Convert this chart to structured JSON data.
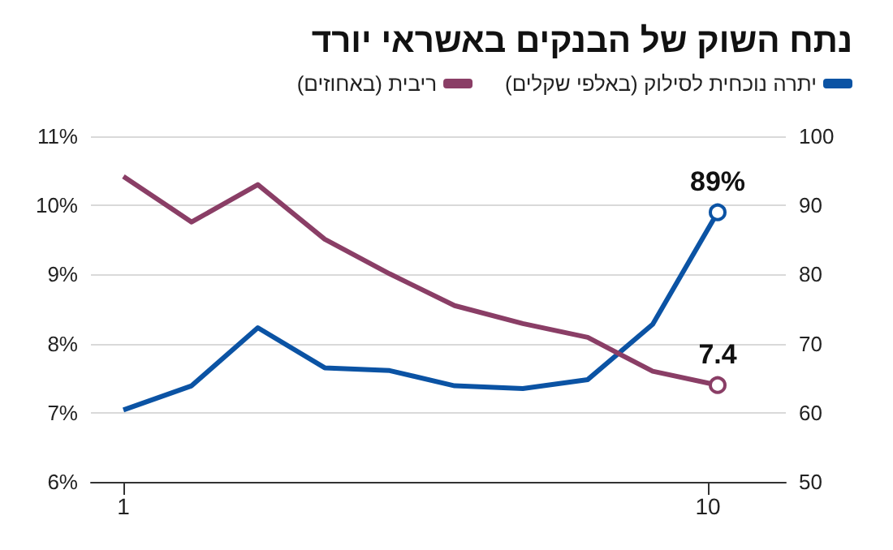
{
  "chart_data": {
    "type": "line",
    "title": "נתח השוק של הבנקים באשראי יורד",
    "x": [
      1,
      2.05,
      3.07,
      4.1,
      5.1,
      6.1,
      7.15,
      8.15,
      9.15,
      10.15
    ],
    "series": [
      {
        "name": "יתרה נוכחית לסילוק (באלפי שקלים)",
        "color": "#0b53a4",
        "axis": "y2",
        "values": [
          60.4,
          63.9,
          72.3,
          66.5,
          66.1,
          63.9,
          63.5,
          64.8,
          72.8,
          89
        ],
        "value_labels": [
          null,
          null,
          null,
          null,
          null,
          null,
          null,
          null,
          null,
          "89%"
        ]
      },
      {
        "name": "ריבית (באחוזים)",
        "color": "#8a3e66",
        "values": [
          10.42,
          9.76,
          10.3,
          9.51,
          9.01,
          8.55,
          8.29,
          8.09,
          7.6,
          7.4
        ],
        "value_labels": [
          null,
          null,
          null,
          null,
          null,
          null,
          null,
          null,
          null,
          "7.4"
        ]
      }
    ],
    "xlim": [
      0.5,
      11.2
    ],
    "xticks": [
      1,
      10
    ],
    "ylim": [
      6,
      11
    ],
    "yticks": [
      {
        "value": 6,
        "label": "6%"
      },
      {
        "value": 7,
        "label": "7%"
      },
      {
        "value": 8,
        "label": "8%"
      },
      {
        "value": 9,
        "label": "9%"
      },
      {
        "value": 10,
        "label": "10%"
      },
      {
        "value": 11,
        "label": "11%"
      }
    ],
    "y2lim": [
      50,
      100
    ],
    "y2ticks": [
      50,
      60,
      70,
      80,
      90,
      100
    ],
    "grid": "y",
    "legend": "top right",
    "line_style": "solid"
  }
}
